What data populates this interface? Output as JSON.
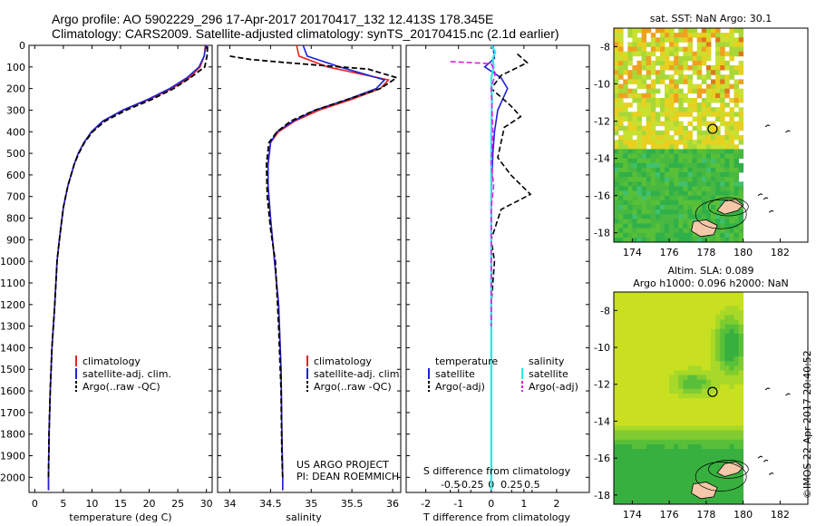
{
  "header": {
    "line1": "Argo profile: AO 5902229_296 17-Apr-2017 20170417_132 12.413S 178.345E",
    "line2": "Climatology: CARS2009. Satellite-adjusted climatology: synTS_20170415.nc (2.1d earlier)"
  },
  "side_label": "©IMOS 22-Apr-2017 20:40:52",
  "colors": {
    "climatology": "#e8231f",
    "satellite": "#1e22d8",
    "argo": "#000000",
    "sat_salinity": "#33e6e6",
    "argo_salinity_adj": "#e020e0",
    "land": "#f4c8a8",
    "grid_bg": "#ffffff"
  },
  "chart_data": [
    {
      "id": "temperature",
      "type": "line",
      "xlabel": "temperature (deg C)",
      "ylabel": "",
      "xlim": [
        -1,
        31
      ],
      "ylim": [
        2070,
        0
      ],
      "xticks": [
        0,
        5,
        10,
        15,
        20,
        25,
        30
      ],
      "xtick_labels": [
        "0",
        "5",
        "10",
        "15",
        "20",
        "25",
        "30"
      ],
      "yticks": [
        0,
        100,
        200,
        300,
        400,
        500,
        600,
        700,
        800,
        900,
        1000,
        1100,
        1200,
        1300,
        1400,
        1500,
        1600,
        1700,
        1800,
        1900,
        2000
      ],
      "ytick_labels": [
        "0",
        "100",
        "200",
        "300",
        "400",
        "500",
        "600",
        "700",
        "800",
        "900",
        "1000",
        "1100",
        "1200",
        "1300",
        "1400",
        "1500",
        "1600",
        "1700",
        "1800",
        "1900",
        "2000"
      ],
      "legend": [
        "climatology",
        "satellite-adj. clim.",
        "Argo(..raw -QC)"
      ],
      "series": [
        {
          "name": "climatology",
          "style": "solid",
          "color_key": "climatology",
          "x": [
            29.8,
            29.6,
            28.9,
            27.0,
            24.0,
            20.0,
            15.5,
            12.0,
            10.0,
            8.6,
            7.6,
            6.9,
            5.8,
            5.0,
            4.3,
            3.9,
            3.5,
            3.0,
            2.7,
            2.5,
            2.4,
            2.4
          ],
          "y": [
            0,
            50,
            100,
            150,
            200,
            250,
            300,
            350,
            400,
            450,
            500,
            550,
            650,
            750,
            900,
            1000,
            1200,
            1400,
            1600,
            1800,
            2000,
            2060
          ]
        },
        {
          "name": "satellite-adj. clim.",
          "style": "solid",
          "color_key": "satellite",
          "x": [
            29.9,
            29.6,
            28.7,
            26.6,
            23.6,
            19.8,
            15.4,
            11.9,
            9.9,
            8.6,
            7.6,
            6.9,
            5.8,
            5.0,
            4.3,
            3.9,
            3.5,
            3.0,
            2.7,
            2.5,
            2.4,
            2.4
          ],
          "y": [
            0,
            50,
            100,
            150,
            200,
            250,
            300,
            350,
            400,
            450,
            500,
            550,
            650,
            750,
            900,
            1000,
            1200,
            1400,
            1600,
            1800,
            2000,
            2060
          ]
        },
        {
          "name": "Argo(..raw -QC)",
          "style": "dashed",
          "color_key": "argo",
          "x": [
            30.2,
            30.1,
            29.7,
            27.2,
            24.3,
            20.5,
            16.0,
            12.3,
            10.1,
            8.7,
            7.7,
            6.9,
            5.8,
            5.0,
            4.3,
            3.9,
            3.5,
            3.0,
            2.7,
            2.5,
            2.4
          ],
          "y": [
            5,
            50,
            100,
            150,
            200,
            250,
            300,
            350,
            400,
            450,
            500,
            550,
            650,
            750,
            900,
            1000,
            1200,
            1400,
            1600,
            1800,
            2000
          ]
        }
      ]
    },
    {
      "id": "salinity",
      "type": "line",
      "xlabel": "salinity",
      "ylabel": "",
      "xlim": [
        33.85,
        36.1
      ],
      "ylim": [
        2070,
        0
      ],
      "xticks": [
        34,
        34.5,
        35,
        35.5,
        36
      ],
      "xtick_labels": [
        "34",
        "34.5",
        "35",
        "35.5",
        "36"
      ],
      "legend": [
        "climatology",
        "satellite-adj. clim.",
        "Argo(..raw -QC)"
      ],
      "annotation": [
        "US ARGO PROJECT",
        "PI: DEAN ROEMMICH"
      ],
      "series": [
        {
          "name": "climatology",
          "style": "solid",
          "color_key": "climatology",
          "x": [
            34.82,
            34.85,
            35.2,
            35.95,
            35.85,
            35.5,
            35.1,
            34.8,
            34.6,
            34.5,
            34.47,
            34.47,
            34.5,
            34.55,
            34.6,
            34.63,
            34.64,
            34.65,
            34.65
          ],
          "y": [
            0,
            50,
            100,
            160,
            200,
            250,
            300,
            350,
            400,
            450,
            550,
            650,
            800,
            1000,
            1200,
            1500,
            1800,
            2000,
            2060
          ]
        },
        {
          "name": "satellite-adj. clim.",
          "style": "solid",
          "color_key": "satellite",
          "x": [
            34.9,
            34.95,
            35.35,
            35.9,
            35.8,
            35.45,
            35.05,
            34.78,
            34.58,
            34.5,
            34.47,
            34.47,
            34.5,
            34.55,
            34.6,
            34.63,
            34.64,
            34.65,
            34.65
          ],
          "y": [
            0,
            50,
            100,
            160,
            200,
            250,
            300,
            350,
            400,
            450,
            550,
            650,
            800,
            1000,
            1200,
            1500,
            1800,
            2000,
            2060
          ]
        },
        {
          "name": "Argo(..raw -QC)",
          "style": "dashed",
          "color_key": "argo",
          "x": [
            34.0,
            34.25,
            34.7,
            35.7,
            36.05,
            35.85,
            35.45,
            35.05,
            34.75,
            34.58,
            34.48,
            34.45,
            34.46,
            34.5,
            34.56,
            34.6,
            34.63,
            34.64,
            34.65
          ],
          "y": [
            50,
            65,
            80,
            110,
            150,
            200,
            250,
            300,
            350,
            400,
            450,
            550,
            700,
            850,
            1000,
            1300,
            1600,
            1900,
            2000
          ]
        }
      ]
    },
    {
      "id": "difference",
      "type": "line",
      "xlabel": "T difference from climatology",
      "xlabel_top": "S difference from climatology",
      "xlim": [
        -2.6,
        3.0
      ],
      "ylim": [
        2070,
        0
      ],
      "xticks": [
        -2,
        -1,
        0,
        1,
        2
      ],
      "xtick_labels": [
        "-2",
        "-1",
        "0",
        "1",
        "2"
      ],
      "xticks_top": [
        -0.5,
        -0.25,
        0,
        0.25,
        0.5
      ],
      "xtick_labels_top": [
        "-0.5",
        "-0.25",
        "0",
        "0.25",
        "0.5"
      ],
      "legend_temperature_title": "temperature",
      "legend_salinity_title": "salinity",
      "legend": [
        "satellite",
        "Argo(-adj)",
        "satellite",
        "Argo(-adj)"
      ],
      "series": [
        {
          "name": "temperature satellite",
          "style": "solid",
          "color_key": "satellite",
          "x": [
            0.05,
            0.1,
            -0.2,
            0.3,
            0.5,
            0.2,
            0.1,
            0.05,
            0.0,
            0.0,
            0.0,
            0.0,
            0.0
          ],
          "y": [
            0,
            60,
            100,
            150,
            200,
            300,
            400,
            500,
            700,
            1000,
            1500,
            2000,
            2060
          ]
        },
        {
          "name": "temperature Argo(-adj)",
          "style": "dashed",
          "color_key": "argo",
          "x": [
            0.8,
            1.1,
            0.3,
            0.0,
            0.6,
            0.9,
            0.4,
            0.3,
            0.2,
            0.6,
            1.2,
            0.3,
            0.0,
            0.1,
            0.0,
            0.0
          ],
          "y": [
            40,
            80,
            140,
            200,
            280,
            330,
            380,
            450,
            520,
            600,
            690,
            760,
            900,
            1000,
            1200,
            2000
          ]
        },
        {
          "name": "salinity satellite",
          "style": "solid",
          "color_key": "sat_salinity",
          "x": [
            0.0,
            0.05,
            0.02,
            0.03,
            0.0,
            0.01,
            0.0,
            0.0,
            0.0,
            0.0,
            0.0
          ],
          "y": [
            0,
            30,
            60,
            100,
            150,
            250,
            400,
            600,
            900,
            1500,
            2060
          ]
        },
        {
          "name": "salinity Argo(-adj)",
          "style": "dashed",
          "color_key": "argo_salinity_adj",
          "x": [
            -0.5,
            0.0,
            0.05,
            0.0,
            0.02,
            0.0,
            0.03,
            0.0,
            0.0,
            0.0
          ],
          "y": [
            75,
            85,
            130,
            200,
            400,
            550,
            650,
            750,
            1000,
            1300
          ]
        }
      ]
    },
    {
      "id": "sst_map",
      "type": "heatmap",
      "title": "sat. SST: NaN Argo: 30.1",
      "xlim": [
        173,
        183.5
      ],
      "ylim": [
        -18.5,
        -7
      ],
      "xticks": [
        174,
        176,
        178,
        180,
        182
      ],
      "xtick_labels": [
        "174",
        "176",
        "178",
        "180",
        "182"
      ],
      "yticks": [
        -8,
        -10,
        -12,
        -14,
        -16,
        -18
      ],
      "ytick_labels": [
        "-8",
        "-10",
        "-12",
        "-14",
        "-16",
        "-18"
      ],
      "data_xlim": [
        173,
        180
      ],
      "argo_position": [
        178.345,
        -12.413
      ],
      "land": "Fiji islands"
    },
    {
      "id": "sla_map",
      "type": "heatmap",
      "title_line1": "Altim. SLA: 0.089",
      "title_line2": "Argo h1000: 0.096 h2000: NaN",
      "xlim": [
        173,
        183.5
      ],
      "ylim": [
        -18.5,
        -7
      ],
      "xticks": [
        174,
        176,
        178,
        180,
        182
      ],
      "xtick_labels": [
        "174",
        "176",
        "178",
        "180",
        "182"
      ],
      "yticks": [
        -8,
        -10,
        -12,
        -14,
        -16,
        -18
      ],
      "ytick_labels": [
        "-8",
        "-10",
        "-12",
        "-14",
        "-16",
        "-18"
      ],
      "data_xlim": [
        173,
        180
      ],
      "argo_position": [
        178.345,
        -12.413
      ],
      "land": "Fiji islands"
    }
  ]
}
